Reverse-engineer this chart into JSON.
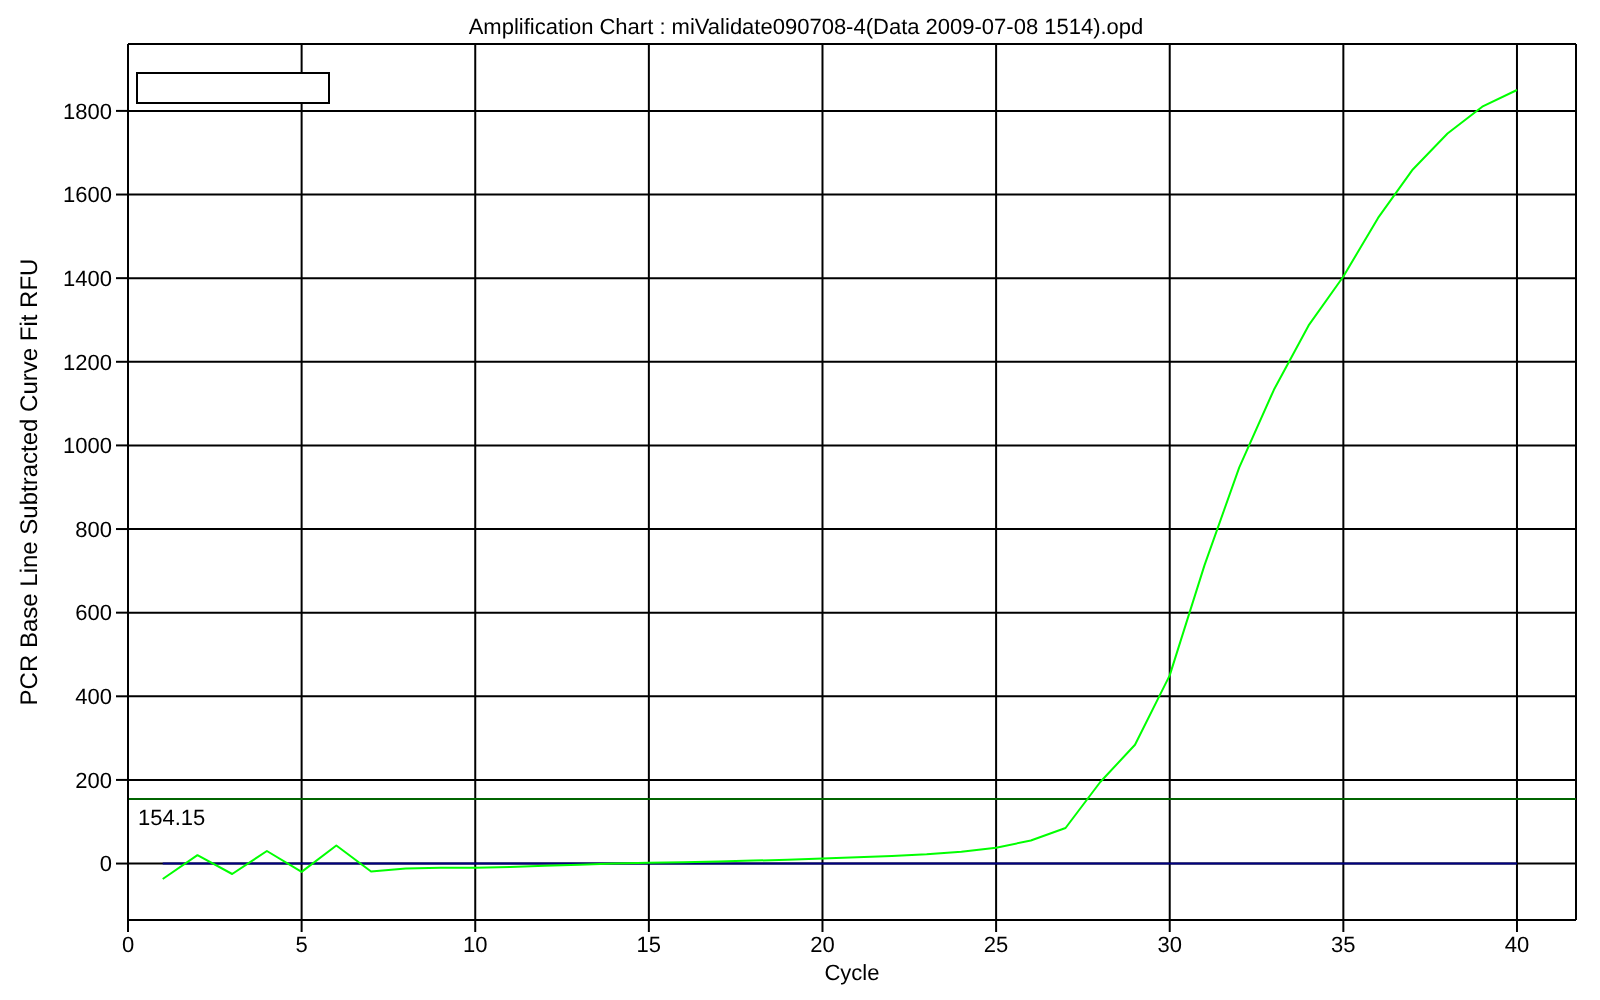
{
  "chart_data": {
    "type": "line",
    "title": "Amplification Chart : miValidate090708-4(Data 2009-07-08 1514).opd",
    "xlabel": "Cycle",
    "ylabel": "PCR Base Line Subtracted Curve Fit RFU",
    "x": [
      1,
      2,
      3,
      4,
      5,
      6,
      7,
      8,
      9,
      10,
      11,
      12,
      13,
      14,
      15,
      16,
      17,
      18,
      19,
      20,
      21,
      22,
      23,
      24,
      25,
      26,
      27,
      28,
      29,
      30,
      31,
      32,
      33,
      34,
      35,
      36,
      37,
      38,
      39,
      40
    ],
    "series": [
      {
        "color": "#000080",
        "values": [
          0,
          0,
          0,
          0,
          0,
          0,
          0,
          0,
          0,
          0,
          0,
          0,
          0,
          0,
          0,
          0,
          0,
          0,
          0,
          0,
          0,
          0,
          0,
          0,
          0,
          0,
          0,
          0,
          0,
          0,
          0,
          0,
          0,
          0,
          0,
          0,
          0,
          0,
          0,
          0
        ]
      },
      {
        "color": "#00ff00",
        "values": [
          -37,
          20,
          -25,
          30,
          -20,
          43,
          -19,
          -12,
          -10,
          -10,
          -8,
          -5,
          -3,
          0,
          2,
          3,
          5,
          7,
          9,
          12,
          15,
          18,
          22,
          28,
          38,
          55,
          85,
          195,
          284,
          450,
          713,
          947,
          1133,
          1287,
          1404,
          1544,
          1660,
          1746,
          1810,
          1850
        ]
      }
    ],
    "xlim": [
      0,
      41.7
    ],
    "ylim": [
      -135,
      1960
    ],
    "xticks": [
      0,
      5,
      10,
      15,
      20,
      25,
      30,
      35,
      40
    ],
    "yticks": [
      0,
      200,
      400,
      600,
      800,
      1000,
      1200,
      1400,
      1600,
      1800
    ],
    "grid": true,
    "marker": "none",
    "line_style": "solid",
    "ref_lines": [
      {
        "axis": "y",
        "value": 154.15,
        "label": "154.15",
        "color": "#006400"
      }
    ]
  }
}
